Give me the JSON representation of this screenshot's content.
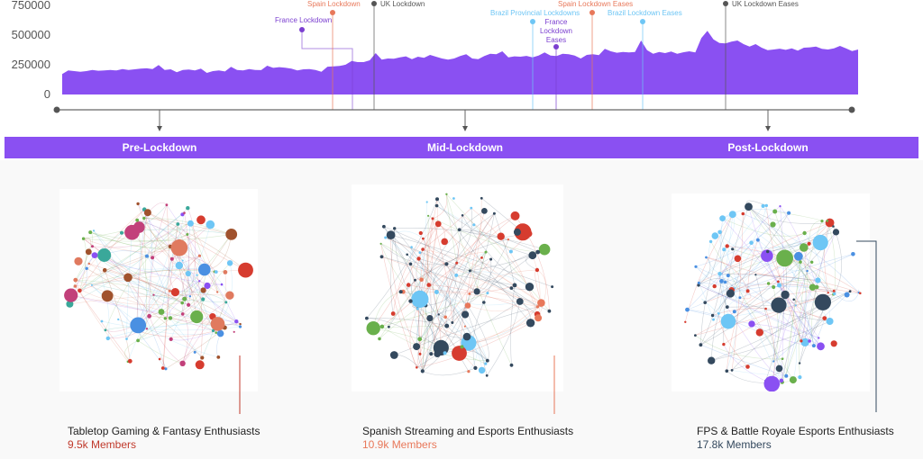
{
  "chart_data": {
    "type": "area",
    "title": "",
    "xlabel": "",
    "ylabel": "",
    "ylim": [
      0,
      750000
    ],
    "yticks": [
      "750000",
      "500000",
      "250000",
      "0"
    ],
    "grid": false,
    "color": "#8a50f2",
    "values": [
      170000,
      200000,
      195000,
      190000,
      195000,
      205000,
      198000,
      200000,
      205000,
      200000,
      212000,
      205000,
      210000,
      215000,
      218000,
      212000,
      245000,
      205000,
      210000,
      185000,
      205000,
      208000,
      200000,
      215000,
      180000,
      195000,
      200000,
      192000,
      230000,
      205000,
      200000,
      212000,
      205000,
      203000,
      240000,
      222000,
      228000,
      223000,
      215000,
      200000,
      210000,
      212000,
      205000,
      190000,
      232000,
      235000,
      238000,
      248000,
      280000,
      270000,
      270000,
      285000,
      345000,
      290000,
      300000,
      298000,
      310000,
      318000,
      295000,
      315000,
      305000,
      330000,
      315000,
      300000,
      290000,
      300000,
      320000,
      335000,
      300000,
      295000,
      320000,
      340000,
      335000,
      360000,
      310000,
      318000,
      315000,
      322000,
      310000,
      325000,
      350000,
      325000,
      320000,
      340000,
      335000,
      325000,
      300000,
      330000,
      335000,
      328000,
      380000,
      360000,
      348000,
      355000,
      350000,
      355000,
      450000,
      370000,
      340000,
      355000,
      345000,
      358000,
      340000,
      352000,
      360000,
      350000,
      470000,
      530000,
      460000,
      430000,
      425000,
      440000,
      450000,
      420000,
      400000,
      420000,
      390000,
      370000,
      375000,
      382000,
      372000,
      385000,
      365000,
      390000,
      393000,
      400000,
      380000,
      375000,
      385000,
      405000,
      385000,
      362000,
      375000
    ]
  },
  "events": [
    {
      "label": "France Lockdown",
      "color": "#7b3fd0"
    },
    {
      "label": "Spain Lockdown",
      "color": "#e8785a"
    },
    {
      "label": "UK Lockdown",
      "color": "#555555"
    },
    {
      "label": "Brazil Provincial Lockdowns",
      "color": "#6ec6f5"
    },
    {
      "label": "France Lockdown Eases",
      "color": "#7b3fd0"
    },
    {
      "label": "Spain Lockdown Eases",
      "color": "#e8785a"
    },
    {
      "label": "Brazil Lockdown Eases",
      "color": "#6ec6f5"
    },
    {
      "label": "UK Lockdown Eases",
      "color": "#555555"
    }
  ],
  "phases": [
    "Pre-Lockdown",
    "Mid-Lockdown",
    "Post-Lockdown"
  ],
  "clusters": [
    {
      "title": "Tabletop Gaming & Fantasy Enthusiasts",
      "members": "9.5k Members",
      "accent": "#c0392b",
      "node_colors": [
        "#4a90e2",
        "#e07a5f",
        "#c2407a",
        "#d63c2f",
        "#3aa89a",
        "#6ab04c",
        "#6ec6f5",
        "#a0522d",
        "#8a50f2"
      ]
    },
    {
      "title": "Spanish Streaming and Esports Enthusiasts",
      "members": "10.9k Members",
      "accent": "#e8785a",
      "node_colors": [
        "#34495e",
        "#34495e",
        "#34495e",
        "#e8785a",
        "#d63c2f",
        "#6ec6f5",
        "#6ab04c"
      ]
    },
    {
      "title": "FPS & Battle Royale Esports Enthusiasts",
      "members": "17.8k Members",
      "accent": "#34495e",
      "node_colors": [
        "#34495e",
        "#34495e",
        "#8a50f2",
        "#6ab04c",
        "#d63c2f",
        "#4a90e2",
        "#6ec6f5"
      ]
    }
  ]
}
